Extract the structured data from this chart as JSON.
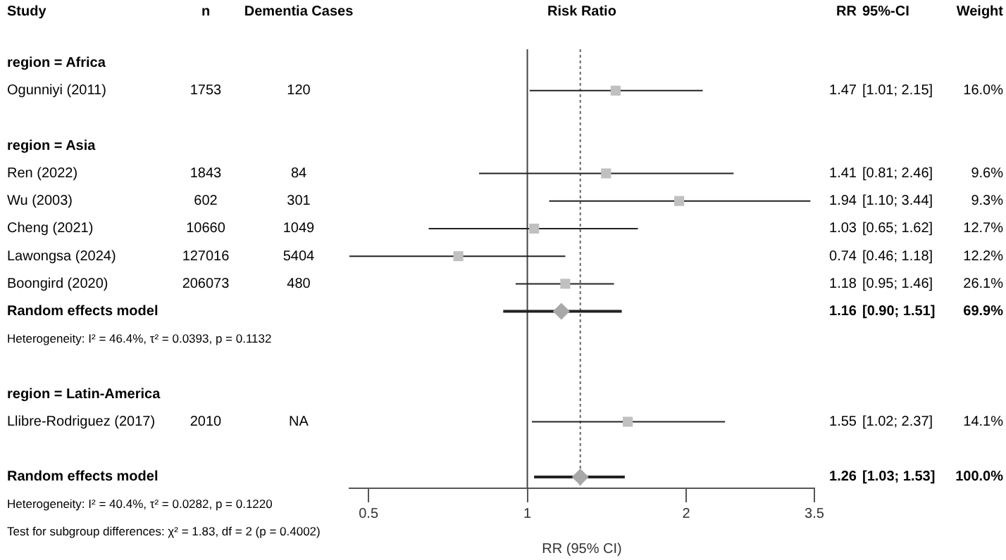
{
  "chart_data": {
    "type": "scatter",
    "orientation": "horizontal",
    "title": "Risk Ratio",
    "xlabel": "RR (95% CI)",
    "categories": [
      "region = Africa",
      "Ogunniyi (2011)",
      null,
      "region = Asia",
      "Ren (2022)",
      "Wu (2003)",
      "Cheng (2021)",
      "Lawongsa (2024)",
      "Boongird (2020)",
      "Random effects model",
      "Heterogeneity: I² = 46.4%, τ² = 0.0393, p = 0.1132",
      null,
      "region = Latin-America",
      "Llibre-Rodriguez (2017)",
      null,
      "Random effects model",
      "Heterogeneity: I² = 40.4%, τ² = 0.0282, p = 0.1220",
      "Test for subgroup differences: χ² = 1.83, df = 2 (p = 0.4002)"
    ],
    "series": [
      {
        "marker": "square",
        "color": "#c0c0c0",
        "values": [
          null,
          1.47,
          null,
          null,
          1.41,
          1.94,
          1.03,
          0.74,
          1.18,
          null,
          null,
          null,
          null,
          1.55,
          null,
          null,
          null,
          null
        ],
        "errors": [
          null,
          [
            1.01,
            2.15
          ],
          null,
          null,
          [
            0.81,
            2.46
          ],
          [
            1.1,
            3.44
          ],
          [
            0.65,
            1.62
          ],
          [
            0.46,
            1.18
          ],
          [
            0.95,
            1.46
          ],
          null,
          null,
          null,
          null,
          [
            1.02,
            2.37
          ],
          null,
          null,
          null,
          null
        ],
        "value_labels": [
          null,
          "1.47 [1.01; 2.15] 16.0%",
          null,
          null,
          "1.41 [0.81; 2.46] 9.6%",
          "1.94 [1.10; 3.44] 9.3%",
          "1.03 [0.65; 1.62] 12.7%",
          "0.74 [0.46; 1.18] 12.2%",
          "1.18 [0.95; 1.46] 26.1%",
          null,
          null,
          null,
          null,
          "1.55 [1.02; 2.37] 14.1%",
          null,
          null,
          null,
          null
        ]
      },
      {
        "marker": "diamond",
        "color": "#a8a8a8",
        "values": [
          null,
          null,
          null,
          null,
          null,
          null,
          null,
          null,
          null,
          1.16,
          null,
          null,
          null,
          null,
          null,
          1.26,
          null,
          null
        ],
        "errors": [
          null,
          null,
          null,
          null,
          null,
          null,
          null,
          null,
          null,
          [
            0.9,
            1.51
          ],
          null,
          null,
          null,
          null,
          null,
          [
            1.03,
            1.53
          ],
          null,
          null
        ],
        "value_labels": [
          null,
          null,
          null,
          null,
          null,
          null,
          null,
          null,
          null,
          "1.16 [0.90; 1.51] 69.9%",
          null,
          null,
          null,
          null,
          null,
          "1.26 [1.03; 1.53] 100.0%",
          null,
          null
        ]
      }
    ],
    "annotations": [
      "Study",
      "n",
      "Dementia Cases",
      "RR",
      "95%-CI",
      "Weight",
      "1753",
      "120",
      "1843",
      "84",
      "602",
      "301",
      "10660",
      "1049",
      "127016",
      "5404",
      "206073",
      "480",
      "2010",
      "NA"
    ],
    "xlim": [
      0.46,
      3.5
    ],
    "xticks": [
      0.5,
      1,
      2,
      3.5
    ],
    "log": "x",
    "grid": false,
    "legend": false,
    "ref_lines": [
      {
        "axis": "x",
        "value": 1,
        "color": "#444444",
        "line_style": "solid"
      },
      {
        "axis": "x",
        "value": 1.26,
        "color": "#666666",
        "line_style": "dotted"
      }
    ]
  }
}
